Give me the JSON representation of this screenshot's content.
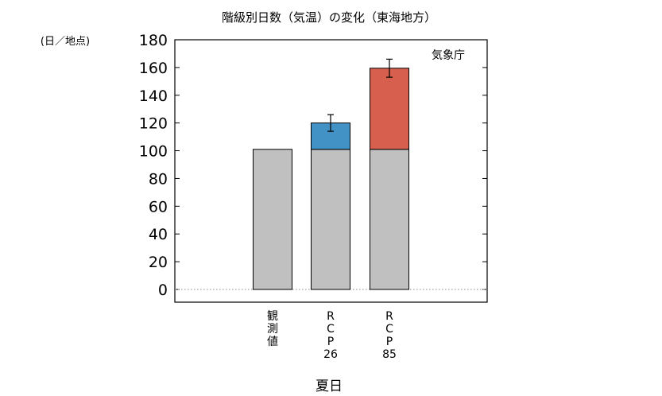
{
  "chart_data": {
    "type": "bar",
    "title": "階級別日数（気温）の変化（東海地方）",
    "unit_label": "(日／地点)",
    "credit": "気象庁",
    "xlabel": "夏日",
    "ylim": [
      0,
      180
    ],
    "yticks": [
      "0",
      "20",
      "40",
      "60",
      "80",
      "100",
      "120",
      "140",
      "160",
      "180"
    ],
    "categories": [
      {
        "label_lines": [
          "観",
          "測",
          "値"
        ]
      },
      {
        "label_lines": [
          "R",
          "C",
          "P",
          "26"
        ]
      },
      {
        "label_lines": [
          "R",
          "C",
          "P",
          "85"
        ]
      }
    ],
    "series": [
      {
        "role": "observed_base",
        "color": "#c0c0c0",
        "values": [
          101,
          101,
          101
        ]
      },
      {
        "role": "projected_change",
        "colors": [
          "#c0c0c0",
          "#4292c6",
          "#d6604d"
        ],
        "values": [
          0,
          19,
          58.5
        ]
      }
    ],
    "error_bars": [
      null,
      {
        "low": 114,
        "high": 126
      },
      {
        "low": 153,
        "high": 166
      }
    ],
    "grid": false,
    "zero_line": "dotted"
  }
}
